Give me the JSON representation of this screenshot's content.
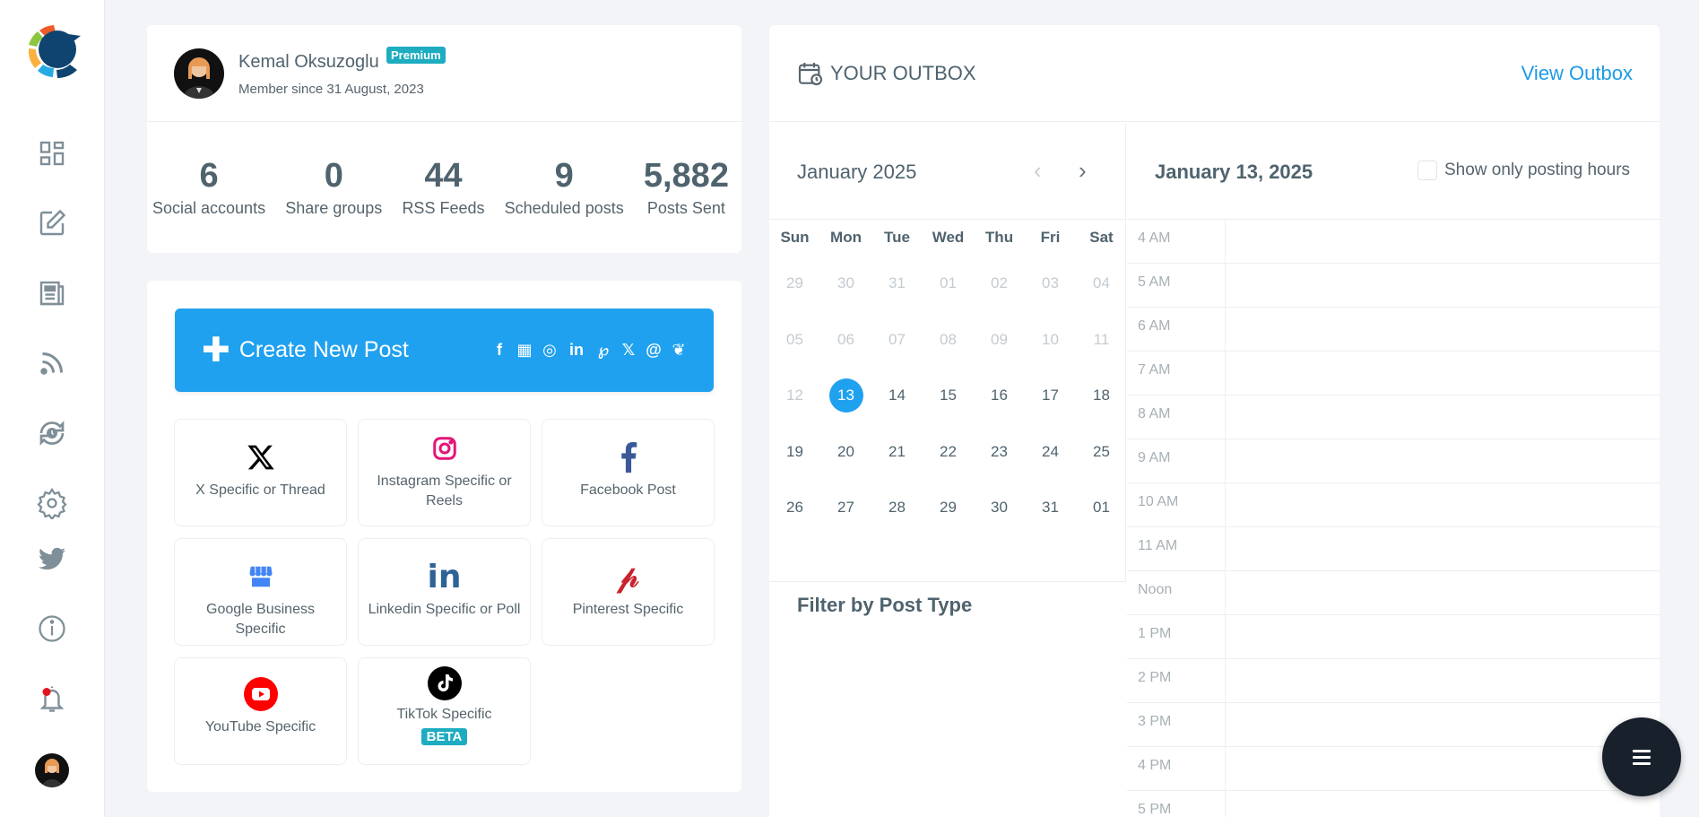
{
  "sidebar": {
    "items": [
      {
        "name": "dashboard",
        "icon": "dashboard-icon"
      },
      {
        "name": "compose",
        "icon": "edit-icon"
      },
      {
        "name": "posts",
        "icon": "newspaper-icon"
      },
      {
        "name": "rss",
        "icon": "rss-icon"
      },
      {
        "name": "scheduler",
        "icon": "sync-clock-icon"
      },
      {
        "name": "settings",
        "icon": "gear-icon"
      },
      {
        "name": "twitter",
        "icon": "twitter-icon"
      },
      {
        "name": "info",
        "icon": "info-icon"
      },
      {
        "name": "notifications",
        "icon": "bell-icon"
      }
    ]
  },
  "profile": {
    "name": "Kemal Oksuzoglu",
    "badge": "Premium",
    "member_since": "Member since 31 August, 2023",
    "stats": [
      {
        "value": "6",
        "label": "Social accounts"
      },
      {
        "value": "0",
        "label": "Share groups"
      },
      {
        "value": "44",
        "label": "RSS Feeds"
      },
      {
        "value": "9",
        "label": "Scheduled posts"
      },
      {
        "value": "5,882",
        "label": "Posts Sent"
      }
    ]
  },
  "create": {
    "button_label": "Create New Post",
    "networks": [
      "facebook",
      "google-business",
      "instagram",
      "linkedin",
      "pinterest",
      "x",
      "threads",
      "bluesky"
    ],
    "tiles": [
      {
        "label": "X Specific or Thread",
        "icon": "x-icon"
      },
      {
        "label": "Instagram Specific or Reels",
        "icon": "instagram-icon"
      },
      {
        "label": "Facebook Post",
        "icon": "facebook-icon"
      },
      {
        "label": "Google Business Specific",
        "icon": "google-business-icon"
      },
      {
        "label": "Linkedin Specific or Poll",
        "icon": "linkedin-icon"
      },
      {
        "label": "Pinterest Specific",
        "icon": "pinterest-icon"
      },
      {
        "label": "YouTube Specific",
        "icon": "youtube-icon"
      },
      {
        "label": "TikTok Specific",
        "icon": "tiktok-icon",
        "badge": "BETA"
      }
    ]
  },
  "outbox": {
    "title": "YOUR OUTBOX",
    "view_link": "View Outbox",
    "calendar": {
      "month": "January 2025",
      "weekdays": [
        "Sun",
        "Mon",
        "Tue",
        "Wed",
        "Thu",
        "Fri",
        "Sat"
      ],
      "weeks": [
        [
          "29",
          "30",
          "31",
          "01",
          "02",
          "03",
          "04"
        ],
        [
          "05",
          "06",
          "07",
          "08",
          "09",
          "10",
          "11"
        ],
        [
          "12",
          "13",
          "14",
          "15",
          "16",
          "17",
          "18"
        ],
        [
          "19",
          "20",
          "21",
          "22",
          "23",
          "24",
          "25"
        ],
        [
          "26",
          "27",
          "28",
          "29",
          "30",
          "31",
          "01"
        ]
      ],
      "selected": "13"
    },
    "filter_title": "Filter by Post Type",
    "day_view": {
      "date": "January 13, 2025",
      "checkbox_label": "Show only posting hours",
      "checked": false,
      "hours": [
        "4 AM",
        "5 AM",
        "6 AM",
        "7 AM",
        "8 AM",
        "9 AM",
        "10 AM",
        "11 AM",
        "Noon",
        "1 PM",
        "2 PM",
        "3 PM",
        "4 PM",
        "5 PM"
      ]
    }
  },
  "colors": {
    "accent": "#20a1ef",
    "badge": "#1eacc1",
    "text": "#4f636e",
    "fab": "#18202c"
  }
}
